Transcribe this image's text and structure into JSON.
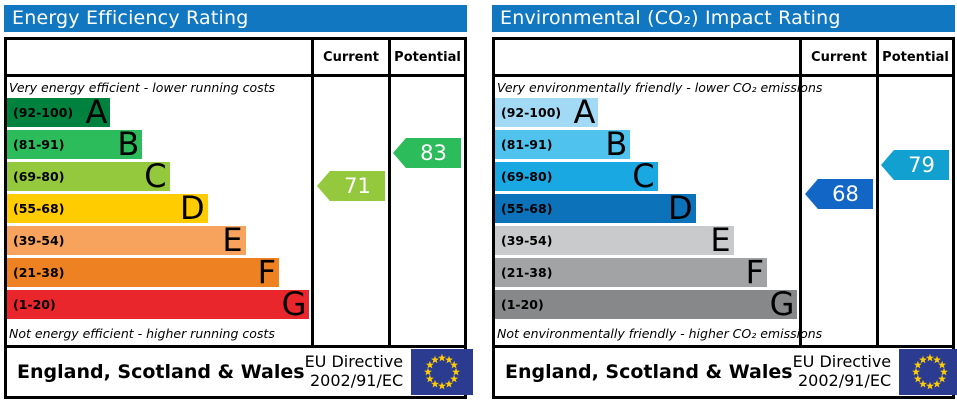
{
  "flag": {
    "field": "#2b3b90",
    "stars": "#ffcc00"
  },
  "panels": [
    {
      "title": "Energy Efficiency Rating",
      "title_color": "#1177c0",
      "header": {
        "current": "Current",
        "potential": "Potential"
      },
      "top_note": "Very energy efficient - lower running costs",
      "bottom_note": "Not energy efficient - higher running costs",
      "bands": [
        {
          "range_label": "(92-100)",
          "letter": "A",
          "lo": 92,
          "hi": 100,
          "color": "#00823f",
          "width_pct": 34
        },
        {
          "range_label": "(81-91)",
          "letter": "B",
          "lo": 81,
          "hi": 91,
          "color": "#2cbc5c",
          "width_pct": 44.5
        },
        {
          "range_label": "(69-80)",
          "letter": "C",
          "lo": 69,
          "hi": 80,
          "color": "#94c83d",
          "width_pct": 53.5
        },
        {
          "range_label": "(55-68)",
          "letter": "D",
          "lo": 55,
          "hi": 68,
          "color": "#ffcc00",
          "width_pct": 66
        },
        {
          "range_label": "(39-54)",
          "letter": "E",
          "lo": 39,
          "hi": 54,
          "color": "#f8a35d",
          "width_pct": 78.5
        },
        {
          "range_label": "(21-38)",
          "letter": "F",
          "lo": 21,
          "hi": 38,
          "color": "#ee8122",
          "width_pct": 89.5
        },
        {
          "range_label": "(1-20)",
          "letter": "G",
          "lo": 1,
          "hi": 20,
          "color": "#e8262c",
          "width_pct": 99.5
        }
      ],
      "current": {
        "value": 71,
        "color": "#94c83d"
      },
      "potential": {
        "value": 83,
        "color": "#2cbc5c"
      },
      "footer": {
        "region": "England, Scotland & Wales",
        "directive_line1": "EU Directive",
        "directive_line2": "2002/91/EC"
      }
    },
    {
      "title": "Environmental (CO₂) Impact Rating",
      "title_color": "#1177c0",
      "header": {
        "current": "Current",
        "potential": "Potential"
      },
      "top_note": "Very environmentally friendly - lower CO₂ emissions",
      "bottom_note": "Not environmentally friendly - higher CO₂ emissions",
      "bands": [
        {
          "range_label": "(92-100)",
          "letter": "A",
          "lo": 92,
          "hi": 100,
          "color": "#a2d9f5",
          "width_pct": 34
        },
        {
          "range_label": "(81-91)",
          "letter": "B",
          "lo": 81,
          "hi": 91,
          "color": "#4fc2ee",
          "width_pct": 44.5
        },
        {
          "range_label": "(69-80)",
          "letter": "C",
          "lo": 69,
          "hi": 80,
          "color": "#19a8e2",
          "width_pct": 53.5
        },
        {
          "range_label": "(55-68)",
          "letter": "D",
          "lo": 55,
          "hi": 68,
          "color": "#0c72ba",
          "width_pct": 66
        },
        {
          "range_label": "(39-54)",
          "letter": "E",
          "lo": 39,
          "hi": 54,
          "color": "#c9cacb",
          "width_pct": 78.5
        },
        {
          "range_label": "(21-38)",
          "letter": "F",
          "lo": 21,
          "hi": 38,
          "color": "#a1a3a5",
          "width_pct": 89.5
        },
        {
          "range_label": "(1-20)",
          "letter": "G",
          "lo": 1,
          "hi": 20,
          "color": "#868889",
          "width_pct": 99.5
        }
      ],
      "current": {
        "value": 68,
        "color": "#1166c6"
      },
      "potential": {
        "value": 79,
        "color": "#12a0d1"
      },
      "footer": {
        "region": "England, Scotland & Wales",
        "directive_line1": "EU Directive",
        "directive_line2": "2002/91/EC"
      }
    }
  ],
  "chart_data": [
    {
      "type": "bar",
      "orientation": "horizontal",
      "title": "Energy Efficiency Rating",
      "categories": [
        "A (92-100)",
        "B (81-91)",
        "C (69-80)",
        "D (55-68)",
        "E (39-54)",
        "F (21-38)",
        "G (1-20)"
      ],
      "values": [
        34,
        44.5,
        53.5,
        66,
        78.5,
        89.5,
        99.5
      ],
      "bar_colors": [
        "#00823f",
        "#2cbc5c",
        "#94c83d",
        "#ffcc00",
        "#f8a35d",
        "#ee8122",
        "#e8262c"
      ],
      "top_note": "Very energy efficient - lower running costs",
      "bottom_note": "Not energy efficient - higher running costs",
      "markers": [
        {
          "name": "Current",
          "value": 71,
          "band": "C",
          "color": "#94c83d"
        },
        {
          "name": "Potential",
          "value": 83,
          "band": "B",
          "color": "#2cbc5c"
        }
      ],
      "footer_text": "England, Scotland & Wales | EU Directive 2002/91/EC"
    },
    {
      "type": "bar",
      "orientation": "horizontal",
      "title": "Environmental (CO₂) Impact Rating",
      "categories": [
        "A (92-100)",
        "B (81-91)",
        "C (69-80)",
        "D (55-68)",
        "E (39-54)",
        "F (21-38)",
        "G (1-20)"
      ],
      "values": [
        34,
        44.5,
        53.5,
        66,
        78.5,
        89.5,
        99.5
      ],
      "bar_colors": [
        "#a2d9f5",
        "#4fc2ee",
        "#19a8e2",
        "#0c72ba",
        "#c9cacb",
        "#a1a3a5",
        "#868889"
      ],
      "top_note": "Very environmentally friendly - lower CO₂ emissions",
      "bottom_note": "Not environmentally friendly - higher CO₂ emissions",
      "markers": [
        {
          "name": "Current",
          "value": 68,
          "band": "D",
          "color": "#1166c6"
        },
        {
          "name": "Potential",
          "value": 79,
          "band": "C",
          "color": "#12a0d1"
        }
      ],
      "footer_text": "England, Scotland & Wales | EU Directive 2002/91/EC"
    }
  ]
}
